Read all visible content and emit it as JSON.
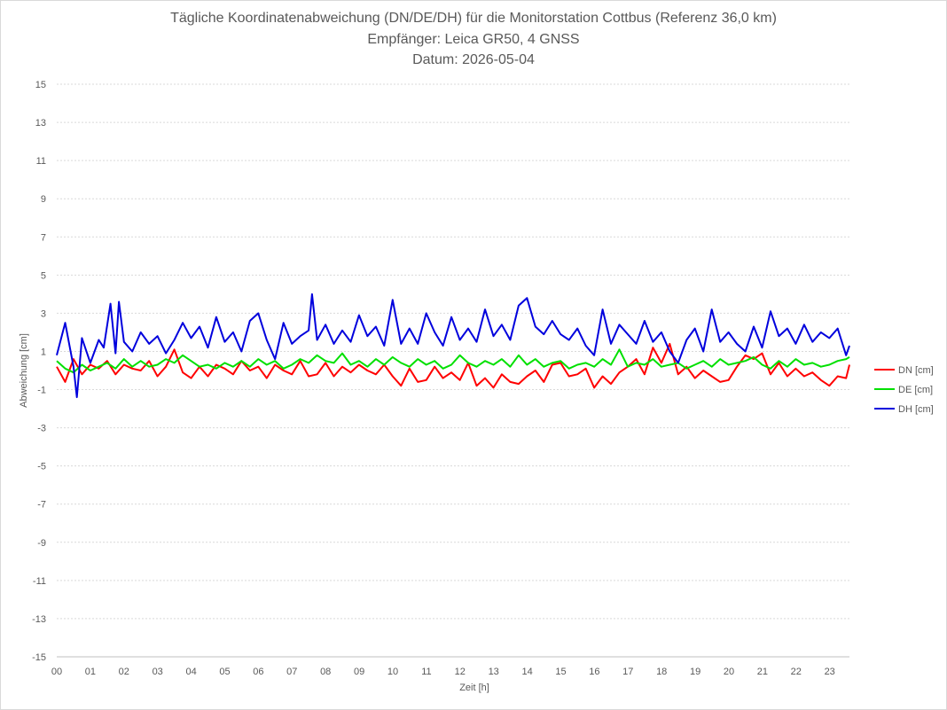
{
  "chart_data": {
    "type": "line",
    "title": "Tägliche Koordinatenabweichung (DN/DE/DH) für die Monitorstation Cottbus (Referenz 36,0 km)",
    "subtitle_lines": [
      "Empfänger: Leica GR50, 4 GNSS",
      "Datum: 2026-05-04"
    ],
    "xlabel": "Zeit [h]",
    "ylabel": "Abweichung [cm]",
    "x_ticks": [
      "00",
      "01",
      "02",
      "03",
      "04",
      "05",
      "06",
      "07",
      "08",
      "09",
      "10",
      "11",
      "12",
      "13",
      "14",
      "15",
      "16",
      "17",
      "18",
      "19",
      "20",
      "21",
      "22",
      "23"
    ],
    "xlim": [
      0,
      24
    ],
    "ylim": [
      -15,
      15
    ],
    "y_ticks": [
      15,
      13,
      11,
      9,
      7,
      5,
      3,
      1,
      -1,
      -3,
      -5,
      -7,
      -9,
      -11,
      -13,
      -15
    ],
    "grid": "horizontal dotted",
    "legend_position": "right",
    "series": [
      {
        "name": "DN [cm]",
        "color": "#ff0000",
        "x": [
          0,
          0.25,
          0.5,
          0.75,
          1,
          1.25,
          1.5,
          1.75,
          2,
          2.25,
          2.5,
          2.75,
          3,
          3.25,
          3.5,
          3.75,
          4,
          4.25,
          4.5,
          4.75,
          5,
          5.25,
          5.5,
          5.75,
          6,
          6.25,
          6.5,
          6.75,
          7,
          7.25,
          7.5,
          7.75,
          8,
          8.25,
          8.5,
          8.75,
          9,
          9.25,
          9.5,
          9.75,
          10,
          10.25,
          10.5,
          10.75,
          11,
          11.25,
          11.5,
          11.75,
          12,
          12.25,
          12.5,
          12.75,
          13,
          13.25,
          13.5,
          13.75,
          14,
          14.25,
          14.5,
          14.75,
          15,
          15.25,
          15.5,
          15.75,
          16,
          16.25,
          16.5,
          16.75,
          17,
          17.25,
          17.5,
          17.75,
          18,
          18.25,
          18.5,
          18.75,
          19,
          19.25,
          19.5,
          19.75,
          20,
          20.25,
          20.5,
          20.75,
          21,
          21.25,
          21.5,
          21.75,
          22,
          22.25,
          22.5,
          22.75,
          23,
          23.25,
          23.5,
          23.6
        ],
        "y": [
          0.2,
          -0.6,
          0.6,
          -0.2,
          0.3,
          0.1,
          0.5,
          -0.2,
          0.3,
          0.1,
          0.0,
          0.5,
          -0.3,
          0.2,
          1.1,
          -0.1,
          -0.4,
          0.2,
          -0.3,
          0.3,
          0.1,
          -0.2,
          0.5,
          0.0,
          0.2,
          -0.4,
          0.3,
          0.0,
          -0.2,
          0.5,
          -0.3,
          -0.2,
          0.4,
          -0.3,
          0.2,
          -0.1,
          0.3,
          0.0,
          -0.2,
          0.3,
          -0.3,
          -0.8,
          0.1,
          -0.6,
          -0.5,
          0.2,
          -0.4,
          -0.1,
          -0.5,
          0.4,
          -0.8,
          -0.4,
          -0.9,
          -0.2,
          -0.6,
          -0.7,
          -0.3,
          0.0,
          -0.6,
          0.3,
          0.4,
          -0.3,
          -0.2,
          0.1,
          -0.9,
          -0.3,
          -0.7,
          -0.1,
          0.2,
          0.6,
          -0.2,
          1.2,
          0.4,
          1.4,
          -0.2,
          0.2,
          -0.4,
          0.0,
          -0.3,
          -0.6,
          -0.5,
          0.2,
          0.8,
          0.6,
          0.9,
          -0.2,
          0.4,
          -0.3,
          0.1,
          -0.3,
          -0.1,
          -0.5,
          -0.8,
          -0.3,
          -0.4,
          0.3
        ]
      },
      {
        "name": "DE [cm]",
        "color": "#00e000",
        "x": [
          0,
          0.25,
          0.5,
          0.75,
          1,
          1.25,
          1.5,
          1.75,
          2,
          2.25,
          2.5,
          2.75,
          3,
          3.25,
          3.5,
          3.75,
          4,
          4.25,
          4.5,
          4.75,
          5,
          5.25,
          5.5,
          5.75,
          6,
          6.25,
          6.5,
          6.75,
          7,
          7.25,
          7.5,
          7.75,
          8,
          8.25,
          8.5,
          8.75,
          9,
          9.25,
          9.5,
          9.75,
          10,
          10.25,
          10.5,
          10.75,
          11,
          11.25,
          11.5,
          11.75,
          12,
          12.25,
          12.5,
          12.75,
          13,
          13.25,
          13.5,
          13.75,
          14,
          14.25,
          14.5,
          14.75,
          15,
          15.25,
          15.5,
          15.75,
          16,
          16.25,
          16.5,
          16.75,
          17,
          17.25,
          17.5,
          17.75,
          18,
          18.25,
          18.5,
          18.75,
          19,
          19.25,
          19.5,
          19.75,
          20,
          20.25,
          20.5,
          20.75,
          21,
          21.25,
          21.5,
          21.75,
          22,
          22.25,
          22.5,
          22.75,
          23,
          23.25,
          23.5,
          23.6
        ],
        "y": [
          0.5,
          0.1,
          -0.1,
          0.3,
          0.0,
          0.2,
          0.4,
          0.1,
          0.6,
          0.2,
          0.5,
          0.2,
          0.3,
          0.6,
          0.4,
          0.8,
          0.5,
          0.2,
          0.3,
          0.1,
          0.4,
          0.2,
          0.5,
          0.2,
          0.6,
          0.3,
          0.5,
          0.1,
          0.3,
          0.6,
          0.4,
          0.8,
          0.5,
          0.4,
          0.9,
          0.3,
          0.5,
          0.2,
          0.6,
          0.3,
          0.7,
          0.4,
          0.2,
          0.6,
          0.3,
          0.5,
          0.1,
          0.3,
          0.8,
          0.4,
          0.2,
          0.5,
          0.3,
          0.6,
          0.2,
          0.8,
          0.3,
          0.6,
          0.2,
          0.4,
          0.5,
          0.1,
          0.3,
          0.4,
          0.2,
          0.6,
          0.3,
          1.1,
          0.2,
          0.4,
          0.3,
          0.6,
          0.2,
          0.3,
          0.4,
          0.1,
          0.3,
          0.5,
          0.2,
          0.6,
          0.3,
          0.4,
          0.5,
          0.7,
          0.3,
          0.1,
          0.5,
          0.2,
          0.6,
          0.3,
          0.4,
          0.2,
          0.3,
          0.5,
          0.6,
          0.7
        ]
      },
      {
        "name": "DH [cm]",
        "color": "#0000dd",
        "x": [
          0,
          0.25,
          0.5,
          0.6,
          0.75,
          1,
          1.25,
          1.4,
          1.6,
          1.75,
          1.85,
          2,
          2.25,
          2.5,
          2.75,
          3,
          3.25,
          3.5,
          3.75,
          4,
          4.25,
          4.5,
          4.75,
          5,
          5.25,
          5.5,
          5.75,
          6,
          6.25,
          6.5,
          6.75,
          7,
          7.25,
          7.5,
          7.6,
          7.75,
          8,
          8.25,
          8.5,
          8.75,
          9,
          9.25,
          9.5,
          9.75,
          10,
          10.25,
          10.5,
          10.75,
          11,
          11.25,
          11.5,
          11.75,
          12,
          12.25,
          12.5,
          12.75,
          13,
          13.25,
          13.5,
          13.75,
          14,
          14.25,
          14.5,
          14.75,
          15,
          15.25,
          15.5,
          15.75,
          16,
          16.25,
          16.5,
          16.75,
          17,
          17.25,
          17.5,
          17.75,
          18,
          18.25,
          18.5,
          18.75,
          19,
          19.25,
          19.5,
          19.75,
          20,
          20.25,
          20.5,
          20.75,
          21,
          21.25,
          21.5,
          21.75,
          22,
          22.25,
          22.5,
          22.75,
          23,
          23.25,
          23.5,
          23.6
        ],
        "y": [
          0.8,
          2.5,
          0.2,
          -1.4,
          1.7,
          0.4,
          1.6,
          1.2,
          3.5,
          0.9,
          3.6,
          1.5,
          1.0,
          2.0,
          1.4,
          1.8,
          0.9,
          1.6,
          2.5,
          1.7,
          2.3,
          1.2,
          2.8,
          1.5,
          2.0,
          1.0,
          2.6,
          3.0,
          1.6,
          0.6,
          2.5,
          1.4,
          1.8,
          2.1,
          4.0,
          1.6,
          2.4,
          1.4,
          2.1,
          1.5,
          2.9,
          1.8,
          2.3,
          1.3,
          3.7,
          1.4,
          2.2,
          1.4,
          3.0,
          2.0,
          1.3,
          2.8,
          1.6,
          2.2,
          1.5,
          3.2,
          1.8,
          2.4,
          1.6,
          3.4,
          3.8,
          2.3,
          1.9,
          2.6,
          1.9,
          1.6,
          2.2,
          1.3,
          0.8,
          3.2,
          1.4,
          2.4,
          1.9,
          1.4,
          2.6,
          1.5,
          2.0,
          1.0,
          0.4,
          1.6,
          2.2,
          1.0,
          3.2,
          1.5,
          2.0,
          1.4,
          1.0,
          2.3,
          1.2,
          3.1,
          1.8,
          2.2,
          1.4,
          2.4,
          1.5,
          2.0,
          1.7,
          2.2,
          0.8,
          1.3
        ]
      }
    ]
  }
}
